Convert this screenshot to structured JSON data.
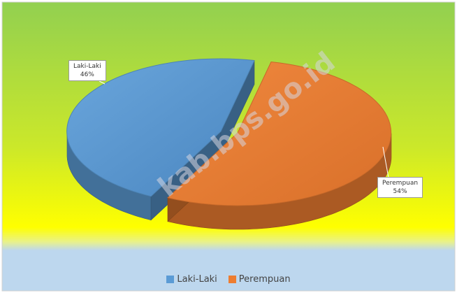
{
  "chart_data": {
    "type": "pie",
    "title": "",
    "categories": [
      "Laki-Laki",
      "Perempuan"
    ],
    "values": [
      46,
      54
    ],
    "data_labels": [
      "46%",
      "54%"
    ],
    "colors": [
      "#5b9bd5",
      "#ed7d31"
    ],
    "legend": "bottom",
    "three_d": true
  },
  "labels": {
    "laki": {
      "name": "Laki-Laki",
      "pct": "46%"
    },
    "perempuan": {
      "name": "Perempuan",
      "pct": "54%"
    }
  },
  "legend": {
    "items": [
      {
        "label": "Laki-Laki",
        "color": "#5b9bd5"
      },
      {
        "label": "Perempuan",
        "color": "#ed7d31"
      }
    ]
  },
  "watermark": "kab.bps.go.id",
  "background": {
    "top": "#92d050",
    "middle": "#ffff00",
    "bottom": "#bdd7ee"
  }
}
